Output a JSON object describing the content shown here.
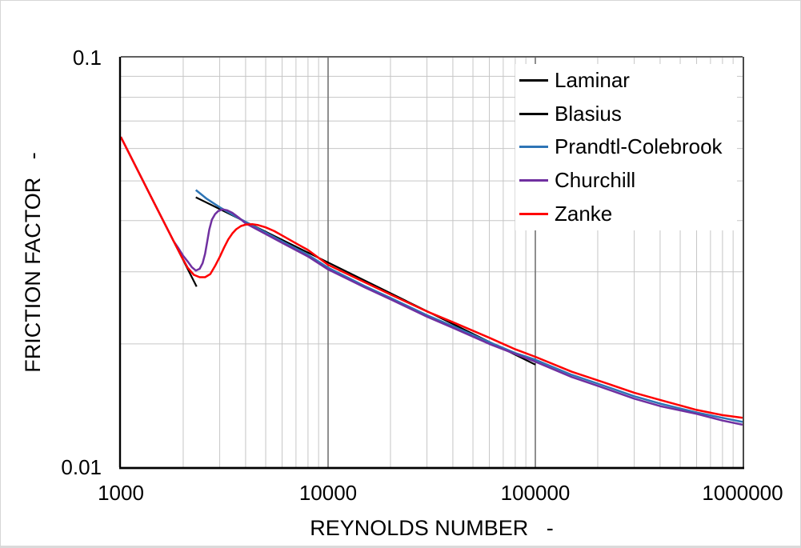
{
  "chart_data": {
    "type": "line",
    "title": "",
    "xlabel": "REYNOLDS NUMBER   -",
    "ylabel": "FRICTION FACTOR   -",
    "x_scale": "log",
    "y_scale": "log",
    "xlim": [
      1000,
      1000000
    ],
    "ylim": [
      0.01,
      0.1
    ],
    "x_ticks": [
      1000,
      10000,
      100000,
      1000000
    ],
    "x_tick_labels": [
      "1000",
      "10000",
      "100000",
      "1000000"
    ],
    "y_ticks": [
      0.1,
      0.01
    ],
    "y_tick_labels": [
      "0.1",
      "0.01"
    ],
    "grid": {
      "show_minor": true,
      "show_major": true,
      "minor_color": "#C6C6C6",
      "major_color": "#737373"
    },
    "legend": {
      "position": "top-right-inside",
      "background": "#FFFFFF"
    },
    "series": [
      {
        "name": "Laminar",
        "color": "#000000",
        "width": 2.2,
        "points": [
          [
            1000,
            0.064
          ],
          [
            2320,
            0.0276
          ]
        ]
      },
      {
        "name": "Blasius",
        "color": "#000000",
        "width": 2.2,
        "points": [
          [
            2300,
            0.0456
          ],
          [
            100000,
            0.0178
          ]
        ]
      },
      {
        "name": "Prandtl-Colebrook",
        "color": "#2E75B6",
        "width": 2.5,
        "points": [
          [
            2300,
            0.0475
          ],
          [
            2600,
            0.0452
          ],
          [
            3000,
            0.0431
          ],
          [
            3500,
            0.0412
          ],
          [
            4000,
            0.0397
          ],
          [
            5000,
            0.0374
          ],
          [
            6000,
            0.0356
          ],
          [
            8000,
            0.033
          ],
          [
            10000,
            0.0307
          ],
          [
            15000,
            0.0277
          ],
          [
            20000,
            0.0259
          ],
          [
            30000,
            0.0235
          ],
          [
            40000,
            0.0221
          ],
          [
            60000,
            0.0202
          ],
          [
            80000,
            0.019
          ],
          [
            100000,
            0.0183
          ],
          [
            150000,
            0.0168
          ],
          [
            200000,
            0.016
          ],
          [
            300000,
            0.0149
          ],
          [
            400000,
            0.0143
          ],
          [
            600000,
            0.0136
          ],
          [
            800000,
            0.0132
          ],
          [
            1000000,
            0.0129
          ]
        ]
      },
      {
        "name": "Churchill",
        "color": "#7030A0",
        "width": 2.5,
        "points": [
          [
            1000,
            0.064
          ],
          [
            1400,
            0.0457
          ],
          [
            1800,
            0.0356
          ],
          [
            1900,
            0.0342
          ],
          [
            2000,
            0.0328
          ],
          [
            2100,
            0.0318
          ],
          [
            2200,
            0.0308
          ],
          [
            2300,
            0.0302
          ],
          [
            2400,
            0.0305
          ],
          [
            2480,
            0.0315
          ],
          [
            2550,
            0.0332
          ],
          [
            2610,
            0.0355
          ],
          [
            2670,
            0.038
          ],
          [
            2750,
            0.0402
          ],
          [
            2850,
            0.0415
          ],
          [
            2950,
            0.0422
          ],
          [
            3100,
            0.0426
          ],
          [
            3250,
            0.0424
          ],
          [
            3450,
            0.0418
          ],
          [
            3700,
            0.0407
          ],
          [
            4000,
            0.0394
          ],
          [
            5000,
            0.0371
          ],
          [
            6000,
            0.0353
          ],
          [
            8000,
            0.0327
          ],
          [
            10000,
            0.0304
          ],
          [
            15000,
            0.0275
          ],
          [
            20000,
            0.0257
          ],
          [
            30000,
            0.0233
          ],
          [
            40000,
            0.0219
          ],
          [
            60000,
            0.02
          ],
          [
            80000,
            0.0189
          ],
          [
            100000,
            0.0181
          ],
          [
            150000,
            0.0166
          ],
          [
            200000,
            0.0158
          ],
          [
            300000,
            0.0147
          ],
          [
            400000,
            0.0141
          ],
          [
            600000,
            0.0135
          ],
          [
            800000,
            0.013
          ],
          [
            1000000,
            0.0127
          ]
        ]
      },
      {
        "name": "Zanke",
        "color": "#FF0000",
        "width": 2.5,
        "points": [
          [
            1000,
            0.064
          ],
          [
            1400,
            0.0457
          ],
          [
            1800,
            0.0356
          ],
          [
            1950,
            0.0329
          ],
          [
            2100,
            0.0307
          ],
          [
            2250,
            0.0295
          ],
          [
            2400,
            0.0291
          ],
          [
            2550,
            0.0291
          ],
          [
            2700,
            0.0296
          ],
          [
            2850,
            0.031
          ],
          [
            3000,
            0.0326
          ],
          [
            3150,
            0.0344
          ],
          [
            3300,
            0.036
          ],
          [
            3450,
            0.0372
          ],
          [
            3600,
            0.0381
          ],
          [
            3800,
            0.0388
          ],
          [
            4000,
            0.0391
          ],
          [
            4300,
            0.0392
          ],
          [
            4600,
            0.039
          ],
          [
            5000,
            0.0385
          ],
          [
            5500,
            0.0377
          ],
          [
            6000,
            0.0368
          ],
          [
            7000,
            0.0352
          ],
          [
            8000,
            0.0339
          ],
          [
            10000,
            0.0312
          ],
          [
            15000,
            0.0283
          ],
          [
            20000,
            0.0264
          ],
          [
            30000,
            0.024
          ],
          [
            40000,
            0.0226
          ],
          [
            60000,
            0.0207
          ],
          [
            80000,
            0.0194
          ],
          [
            100000,
            0.0186
          ],
          [
            150000,
            0.0171
          ],
          [
            200000,
            0.0163
          ],
          [
            300000,
            0.0152
          ],
          [
            400000,
            0.0146
          ],
          [
            600000,
            0.0138
          ],
          [
            800000,
            0.0134
          ],
          [
            1000000,
            0.0132
          ]
        ]
      }
    ]
  }
}
